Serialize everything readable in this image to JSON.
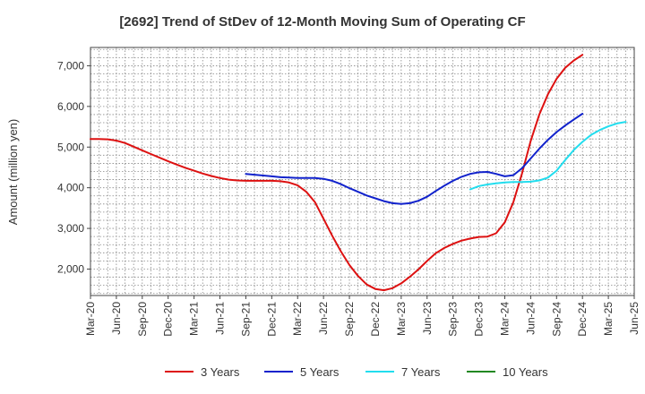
{
  "chart_data": {
    "type": "line",
    "title": "[2692]  Trend of StDev of 12-Month Moving Sum of Operating CF",
    "xlabel": "",
    "ylabel": "Amount (million yen)",
    "ylim": [
      1350,
      7450
    ],
    "yticks": [
      2000,
      3000,
      4000,
      5000,
      6000,
      7000
    ],
    "ytick_labels": [
      "2,000",
      "3,000",
      "4,000",
      "5,000",
      "6,000",
      "7,000"
    ],
    "x_range": [
      0,
      63
    ],
    "xtick_positions": [
      0,
      3,
      6,
      9,
      12,
      15,
      18,
      21,
      24,
      27,
      30,
      33,
      36,
      39,
      42,
      45,
      48,
      51,
      54,
      57,
      60,
      63
    ],
    "xtick_labels": [
      "Mar-20",
      "Jun-20",
      "Sep-20",
      "Dec-20",
      "Mar-21",
      "Jun-21",
      "Sep-21",
      "Dec-21",
      "Mar-22",
      "Jun-22",
      "Sep-22",
      "Dec-22",
      "Mar-23",
      "Jun-23",
      "Sep-23",
      "Dec-23",
      "Mar-24",
      "Jun-24",
      "Sep-24",
      "Dec-24",
      "Mar-25",
      "Jun-25"
    ],
    "grid": true,
    "legend_position": "bottom",
    "series": [
      {
        "name": "3 Years",
        "color": "#dd1111",
        "start_index": 0,
        "values": [
          5200,
          5200,
          5190,
          5160,
          5100,
          5010,
          4920,
          4830,
          4740,
          4650,
          4570,
          4490,
          4420,
          4350,
          4290,
          4240,
          4200,
          4180,
          4170,
          4170,
          4170,
          4170,
          4160,
          4130,
          4060,
          3900,
          3650,
          3240,
          2820,
          2440,
          2100,
          1830,
          1620,
          1510,
          1480,
          1530,
          1650,
          1810,
          1990,
          2200,
          2390,
          2520,
          2620,
          2700,
          2750,
          2790,
          2800,
          2880,
          3150,
          3650,
          4350,
          5150,
          5800,
          6300,
          6680,
          6950,
          7130,
          7270
        ]
      },
      {
        "name": "5 Years",
        "color": "#1122cc",
        "start_index": 18,
        "values": [
          4340,
          4320,
          4300,
          4280,
          4260,
          4250,
          4240,
          4240,
          4240,
          4220,
          4170,
          4090,
          3990,
          3900,
          3810,
          3740,
          3670,
          3620,
          3600,
          3620,
          3680,
          3780,
          3920,
          4050,
          4170,
          4270,
          4340,
          4380,
          4390,
          4340,
          4280,
          4310,
          4480,
          4720,
          4960,
          5180,
          5370,
          5530,
          5680,
          5820
        ]
      },
      {
        "name": "7 Years",
        "color": "#22ddee",
        "start_index": 44,
        "values": [
          3960,
          4040,
          4080,
          4110,
          4130,
          4140,
          4140,
          4150,
          4180,
          4250,
          4420,
          4680,
          4930,
          5130,
          5300,
          5420,
          5510,
          5580,
          5620
        ]
      },
      {
        "name": "10 Years",
        "color": "#228822",
        "start_index": 0,
        "values": []
      }
    ]
  }
}
